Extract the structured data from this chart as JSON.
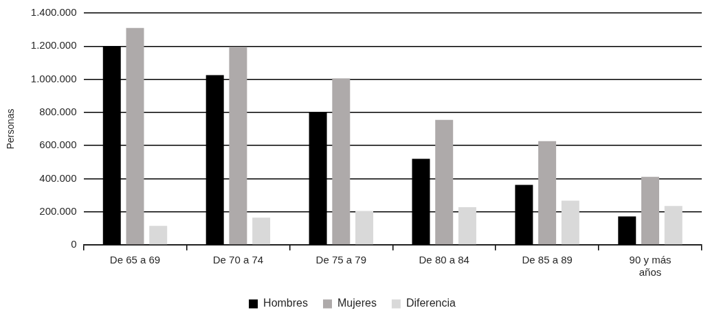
{
  "chart_data": {
    "type": "bar",
    "categories": [
      "De 65 a 69",
      "De 70 a 74",
      "De 75 a 79",
      "De 80 a 84",
      "De 85 a 89",
      "90 y más años"
    ],
    "series": [
      {
        "name": "Hombres",
        "color": "#000000",
        "values": [
          1200000,
          1025000,
          800000,
          520000,
          362000,
          172000
        ]
      },
      {
        "name": "Mujeres",
        "color": "#aeaaaa",
        "values": [
          1310000,
          1195000,
          1005000,
          755000,
          626000,
          411000
        ]
      },
      {
        "name": "Diferencia",
        "color": "#d9d9d9",
        "values": [
          115000,
          165000,
          205000,
          228000,
          267000,
          235000
        ]
      }
    ],
    "ylabel": "Personas",
    "ylim": [
      0,
      1400000
    ],
    "yticks": [
      {
        "value": 0,
        "label": "0"
      },
      {
        "value": 200000,
        "label": "200.000"
      },
      {
        "value": 400000,
        "label": "400.000"
      },
      {
        "value": 600000,
        "label": "600.000"
      },
      {
        "value": 800000,
        "label": "800.000"
      },
      {
        "value": 1000000,
        "label": "1.000.000"
      },
      {
        "value": 1200000,
        "label": "1.200.000"
      },
      {
        "value": 1400000,
        "label": "1.400.000"
      }
    ],
    "grid": "y",
    "legend": "bottom"
  }
}
